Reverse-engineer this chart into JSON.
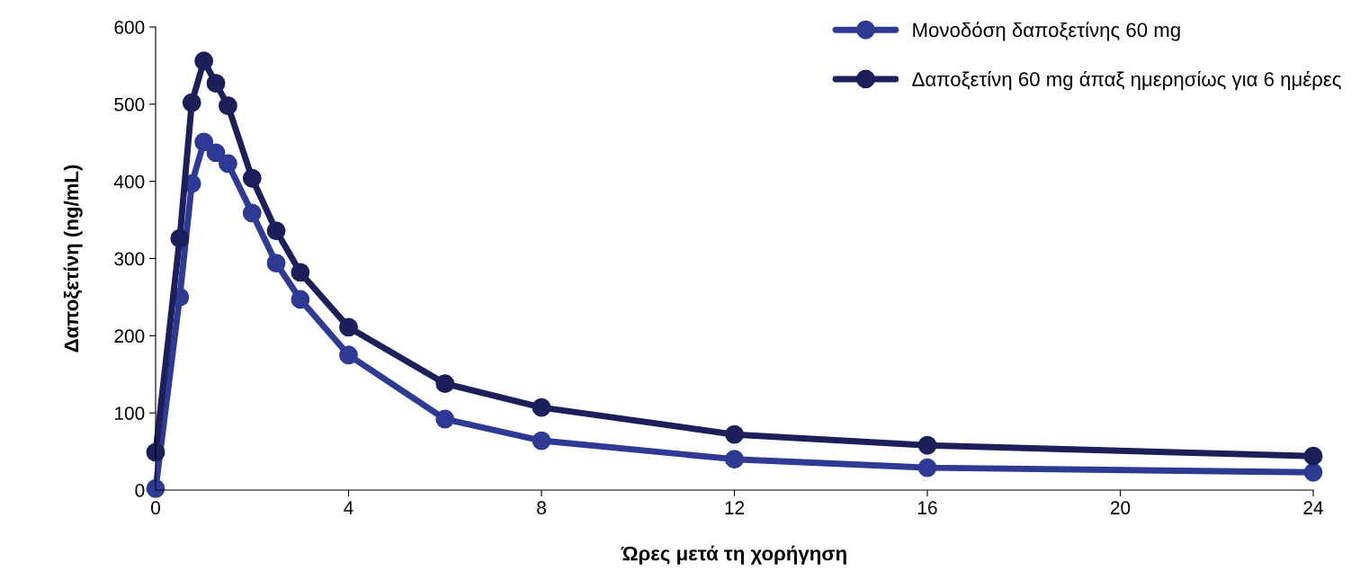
{
  "chart_data": {
    "type": "line",
    "xlabel": "Ώρες μετά τη χορήγηση",
    "ylabel": "Δαποξετίνη (ng/mL)",
    "x": [
      0,
      0.5,
      0.75,
      1,
      1.25,
      1.5,
      2,
      2.5,
      3,
      4,
      6,
      8,
      12,
      16,
      24
    ],
    "series": [
      {
        "name": "Μονοδόση δαποξετίνης 60 mg",
        "color": "#2e3a94",
        "values": [
          2,
          250,
          397,
          451,
          437,
          423,
          359,
          294,
          247,
          175,
          92,
          64,
          40,
          29,
          23
        ]
      },
      {
        "name": "Δαποξετίνη 60 mg άπαξ ημερησίως για 6 ημέρες",
        "color": "#1c1f5a",
        "values": [
          49,
          326,
          502,
          556,
          527,
          498,
          404,
          336,
          282,
          211,
          138,
          107,
          72,
          58,
          44
        ]
      }
    ],
    "xlim": [
      0,
      24
    ],
    "xticks": [
      0,
      4,
      8,
      12,
      16,
      20,
      24
    ],
    "ylim": [
      0,
      600
    ],
    "yticks": [
      0,
      100,
      200,
      300,
      400,
      500,
      600
    ],
    "grid": false,
    "legend": "top right",
    "marker": "circle",
    "line_style": "solid"
  }
}
